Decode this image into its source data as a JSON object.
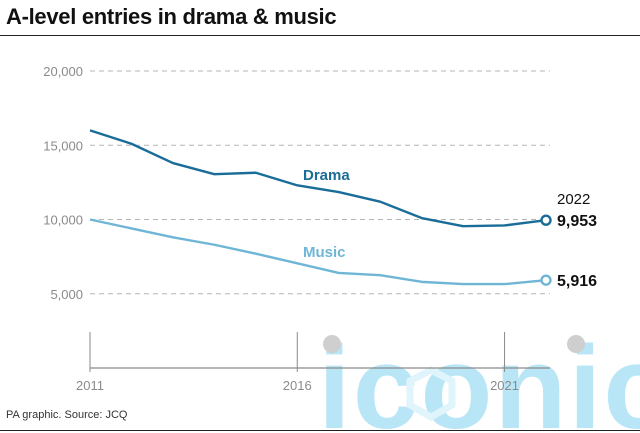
{
  "title": "A-level entries in drama & music",
  "source": "PA graphic. Source: JCQ",
  "watermark": "iconic",
  "colors": {
    "drama": "#1a6d98",
    "music": "#6fb6d6",
    "grid": "#b5b5b5",
    "axis": "#8a8a8a",
    "watermark": "#7ed2ee"
  },
  "chart_data": {
    "type": "line",
    "title": "A-level entries in drama & music",
    "x": [
      2011,
      2012,
      2013,
      2014,
      2015,
      2016,
      2017,
      2018,
      2019,
      2020,
      2021,
      2022
    ],
    "xticks": [
      "2011",
      "2016",
      "2021"
    ],
    "xtick_values": [
      2011,
      2016,
      2021
    ],
    "yticks": [
      "5,000",
      "10,000",
      "15,000",
      "20,000"
    ],
    "ytick_values": [
      5000,
      10000,
      15000,
      20000
    ],
    "ylim": [
      0,
      20000
    ],
    "xlim": [
      2011,
      2022
    ],
    "grid": "horizontal dashed",
    "series": [
      {
        "name": "Drama",
        "key": "drama",
        "values": [
          16000,
          15100,
          13800,
          13050,
          13150,
          12300,
          11850,
          11200,
          10100,
          9550,
          9600,
          9953
        ]
      },
      {
        "name": "Music",
        "key": "music",
        "values": [
          10000,
          9400,
          8800,
          8300,
          7700,
          7050,
          6400,
          6250,
          5800,
          5650,
          5650,
          5916
        ]
      }
    ],
    "annotation_year": "2022",
    "end_labels": {
      "drama": "9,953",
      "music": "5,916"
    }
  }
}
